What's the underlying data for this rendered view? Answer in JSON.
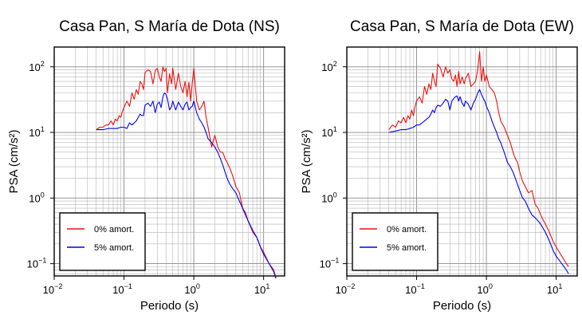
{
  "chart_data": [
    {
      "type": "line",
      "title": "Casa Pan, S María de Dota (NS)",
      "xlabel": "Periodo (s)",
      "ylabel": "PSA (cm/s²)",
      "xscale": "log",
      "yscale": "log",
      "xlim": [
        0.01,
        20
      ],
      "ylim": [
        0.065,
        200
      ],
      "grid": true,
      "legend_placement": "bottom-left",
      "x_ticks": [
        {
          "base": "10",
          "exp": "−2",
          "value": 0.01
        },
        {
          "base": "10",
          "exp": "−1",
          "value": 0.1
        },
        {
          "base": "10",
          "exp": "0",
          "value": 1
        },
        {
          "base": "10",
          "exp": "1",
          "value": 10
        }
      ],
      "y_ticks": [
        {
          "base": "10",
          "exp": "−1",
          "value": 0.1
        },
        {
          "base": "10",
          "exp": "0",
          "value": 1
        },
        {
          "base": "10",
          "exp": "1",
          "value": 10
        },
        {
          "base": "10",
          "exp": "2",
          "value": 100
        }
      ],
      "series": [
        {
          "name": "0% amort.",
          "color": "#ee1111",
          "x": [
            0.04,
            0.045,
            0.05,
            0.055,
            0.06,
            0.065,
            0.07,
            0.075,
            0.08,
            0.085,
            0.09,
            0.095,
            0.1,
            0.11,
            0.12,
            0.13,
            0.14,
            0.15,
            0.16,
            0.17,
            0.18,
            0.19,
            0.2,
            0.22,
            0.24,
            0.26,
            0.28,
            0.3,
            0.32,
            0.34,
            0.36,
            0.38,
            0.4,
            0.42,
            0.45,
            0.48,
            0.5,
            0.55,
            0.6,
            0.65,
            0.7,
            0.75,
            0.8,
            0.85,
            0.9,
            0.95,
            1,
            1.1,
            1.2,
            1.3,
            1.4,
            1.5,
            1.6,
            1.8,
            2,
            2.2,
            2.4,
            2.6,
            2.8,
            3,
            3.3,
            3.6,
            4,
            4.5,
            5,
            5.5,
            6,
            7,
            8,
            9,
            10,
            12,
            14,
            15
          ],
          "y": [
            11,
            12,
            12,
            13,
            13,
            15,
            13,
            16,
            15,
            18,
            17,
            21,
            24,
            30,
            25,
            40,
            32,
            45,
            38,
            60,
            55,
            45,
            82,
            90,
            85,
            55,
            88,
            95,
            70,
            60,
            100,
            85,
            95,
            40,
            78,
            55,
            95,
            45,
            80,
            50,
            40,
            60,
            35,
            58,
            30,
            55,
            95,
            30,
            22,
            25,
            30,
            17,
            12,
            6,
            9,
            6,
            5,
            5,
            4,
            3.5,
            2.8,
            2.2,
            1.5,
            1.2,
            0.7,
            0.6,
            0.45,
            0.3,
            0.25,
            0.18,
            0.15,
            0.1,
            0.08,
            0.06
          ]
        },
        {
          "name": "5% amort.",
          "color": "#0000ee",
          "x": [
            0.04,
            0.05,
            0.06,
            0.07,
            0.08,
            0.09,
            0.1,
            0.11,
            0.12,
            0.13,
            0.14,
            0.15,
            0.16,
            0.17,
            0.18,
            0.19,
            0.2,
            0.22,
            0.24,
            0.26,
            0.28,
            0.3,
            0.32,
            0.34,
            0.36,
            0.38,
            0.4,
            0.42,
            0.45,
            0.48,
            0.5,
            0.55,
            0.6,
            0.65,
            0.7,
            0.75,
            0.8,
            0.85,
            0.9,
            0.95,
            1,
            1.1,
            1.2,
            1.3,
            1.4,
            1.5,
            1.6,
            1.8,
            2,
            2.2,
            2.4,
            2.6,
            2.8,
            3,
            3.3,
            3.6,
            4,
            4.5,
            5,
            5.5,
            6,
            7,
            8,
            9,
            10,
            12,
            14,
            15
          ],
          "y": [
            11,
            11,
            11.5,
            11.5,
            11.5,
            12,
            12,
            11.5,
            14,
            13,
            14,
            15,
            17,
            19,
            18,
            18,
            26,
            28,
            25,
            30,
            20,
            27,
            29,
            24,
            35,
            40,
            38,
            32,
            22,
            25,
            30,
            22,
            29,
            25,
            22,
            27,
            29,
            22,
            24,
            25,
            30,
            20,
            16,
            14,
            12,
            10,
            8,
            7,
            6,
            5,
            4,
            3.2,
            2.5,
            2,
            1.6,
            1.4,
            1.2,
            0.9,
            0.7,
            0.55,
            0.45,
            0.32,
            0.25,
            0.18,
            0.14,
            0.1,
            0.075,
            0.06
          ]
        }
      ]
    },
    {
      "type": "line",
      "title": "Casa Pan, S María de Dota (EW)",
      "xlabel": "Periodo (s)",
      "ylabel": "PSA (cm/s²)",
      "xscale": "log",
      "yscale": "log",
      "xlim": [
        0.01,
        20
      ],
      "ylim": [
        0.065,
        200
      ],
      "grid": true,
      "legend_placement": "bottom-left",
      "x_ticks": [
        {
          "base": "10",
          "exp": "−2",
          "value": 0.01
        },
        {
          "base": "10",
          "exp": "−1",
          "value": 0.1
        },
        {
          "base": "10",
          "exp": "0",
          "value": 1
        },
        {
          "base": "10",
          "exp": "1",
          "value": 10
        }
      ],
      "y_ticks": [
        {
          "base": "10",
          "exp": "−1",
          "value": 0.1
        },
        {
          "base": "10",
          "exp": "0",
          "value": 1
        },
        {
          "base": "10",
          "exp": "1",
          "value": 10
        },
        {
          "base": "10",
          "exp": "2",
          "value": 100
        }
      ],
      "series": [
        {
          "name": "0% amort.",
          "color": "#ee1111",
          "x": [
            0.04,
            0.045,
            0.05,
            0.055,
            0.06,
            0.065,
            0.07,
            0.075,
            0.08,
            0.085,
            0.09,
            0.095,
            0.1,
            0.11,
            0.12,
            0.13,
            0.14,
            0.15,
            0.16,
            0.17,
            0.18,
            0.19,
            0.2,
            0.22,
            0.24,
            0.26,
            0.28,
            0.3,
            0.32,
            0.34,
            0.36,
            0.38,
            0.4,
            0.42,
            0.45,
            0.48,
            0.5,
            0.55,
            0.6,
            0.65,
            0.7,
            0.75,
            0.8,
            0.85,
            0.9,
            0.95,
            1,
            1.1,
            1.2,
            1.3,
            1.4,
            1.5,
            1.6,
            1.8,
            2,
            2.2,
            2.4,
            2.6,
            2.8,
            3,
            3.3,
            3.6,
            4,
            4.5,
            5,
            5.5,
            6,
            7,
            8,
            9,
            10,
            12,
            14,
            15
          ],
          "y": [
            11,
            13,
            12,
            15,
            14,
            17,
            14,
            18,
            16,
            22,
            18,
            25,
            30,
            35,
            28,
            50,
            38,
            55,
            45,
            80,
            60,
            50,
            110,
            95,
            70,
            100,
            80,
            90,
            65,
            60,
            75,
            50,
            85,
            55,
            70,
            55,
            65,
            80,
            50,
            55,
            60,
            90,
            170,
            60,
            100,
            60,
            75,
            50,
            45,
            40,
            30,
            20,
            15,
            12,
            9,
            7,
            5,
            4,
            3.5,
            2.5,
            1.8,
            1.5,
            1.2,
            1.3,
            0.8,
            0.7,
            0.55,
            0.4,
            0.3,
            0.22,
            0.18,
            0.13,
            0.1,
            0.09
          ]
        },
        {
          "name": "5% amort.",
          "color": "#0000ee",
          "x": [
            0.04,
            0.05,
            0.06,
            0.07,
            0.08,
            0.09,
            0.1,
            0.11,
            0.12,
            0.13,
            0.14,
            0.15,
            0.16,
            0.17,
            0.18,
            0.19,
            0.2,
            0.22,
            0.24,
            0.26,
            0.28,
            0.3,
            0.32,
            0.34,
            0.36,
            0.38,
            0.4,
            0.42,
            0.45,
            0.48,
            0.5,
            0.55,
            0.6,
            0.65,
            0.7,
            0.75,
            0.8,
            0.85,
            0.9,
            0.95,
            1,
            1.1,
            1.2,
            1.3,
            1.4,
            1.5,
            1.6,
            1.8,
            2,
            2.2,
            2.4,
            2.6,
            2.8,
            3,
            3.3,
            3.6,
            4,
            4.5,
            5,
            5.5,
            6,
            7,
            8,
            9,
            10,
            12,
            14,
            15
          ],
          "y": [
            10,
            10.5,
            11,
            11,
            11.5,
            12,
            13,
            13,
            14,
            15,
            16,
            17,
            19,
            22,
            20,
            24,
            26,
            25,
            28,
            32,
            30,
            22,
            30,
            33,
            35,
            36,
            30,
            35,
            28,
            25,
            30,
            27,
            22,
            28,
            32,
            40,
            45,
            38,
            33,
            30,
            25,
            20,
            15,
            12,
            10,
            8,
            7,
            5,
            3.5,
            3,
            2.5,
            2,
            1.6,
            1.3,
            1,
            0.9,
            0.7,
            0.55,
            0.5,
            0.45,
            0.4,
            0.3,
            0.22,
            0.16,
            0.13,
            0.1,
            0.08,
            0.07
          ]
        }
      ]
    }
  ]
}
